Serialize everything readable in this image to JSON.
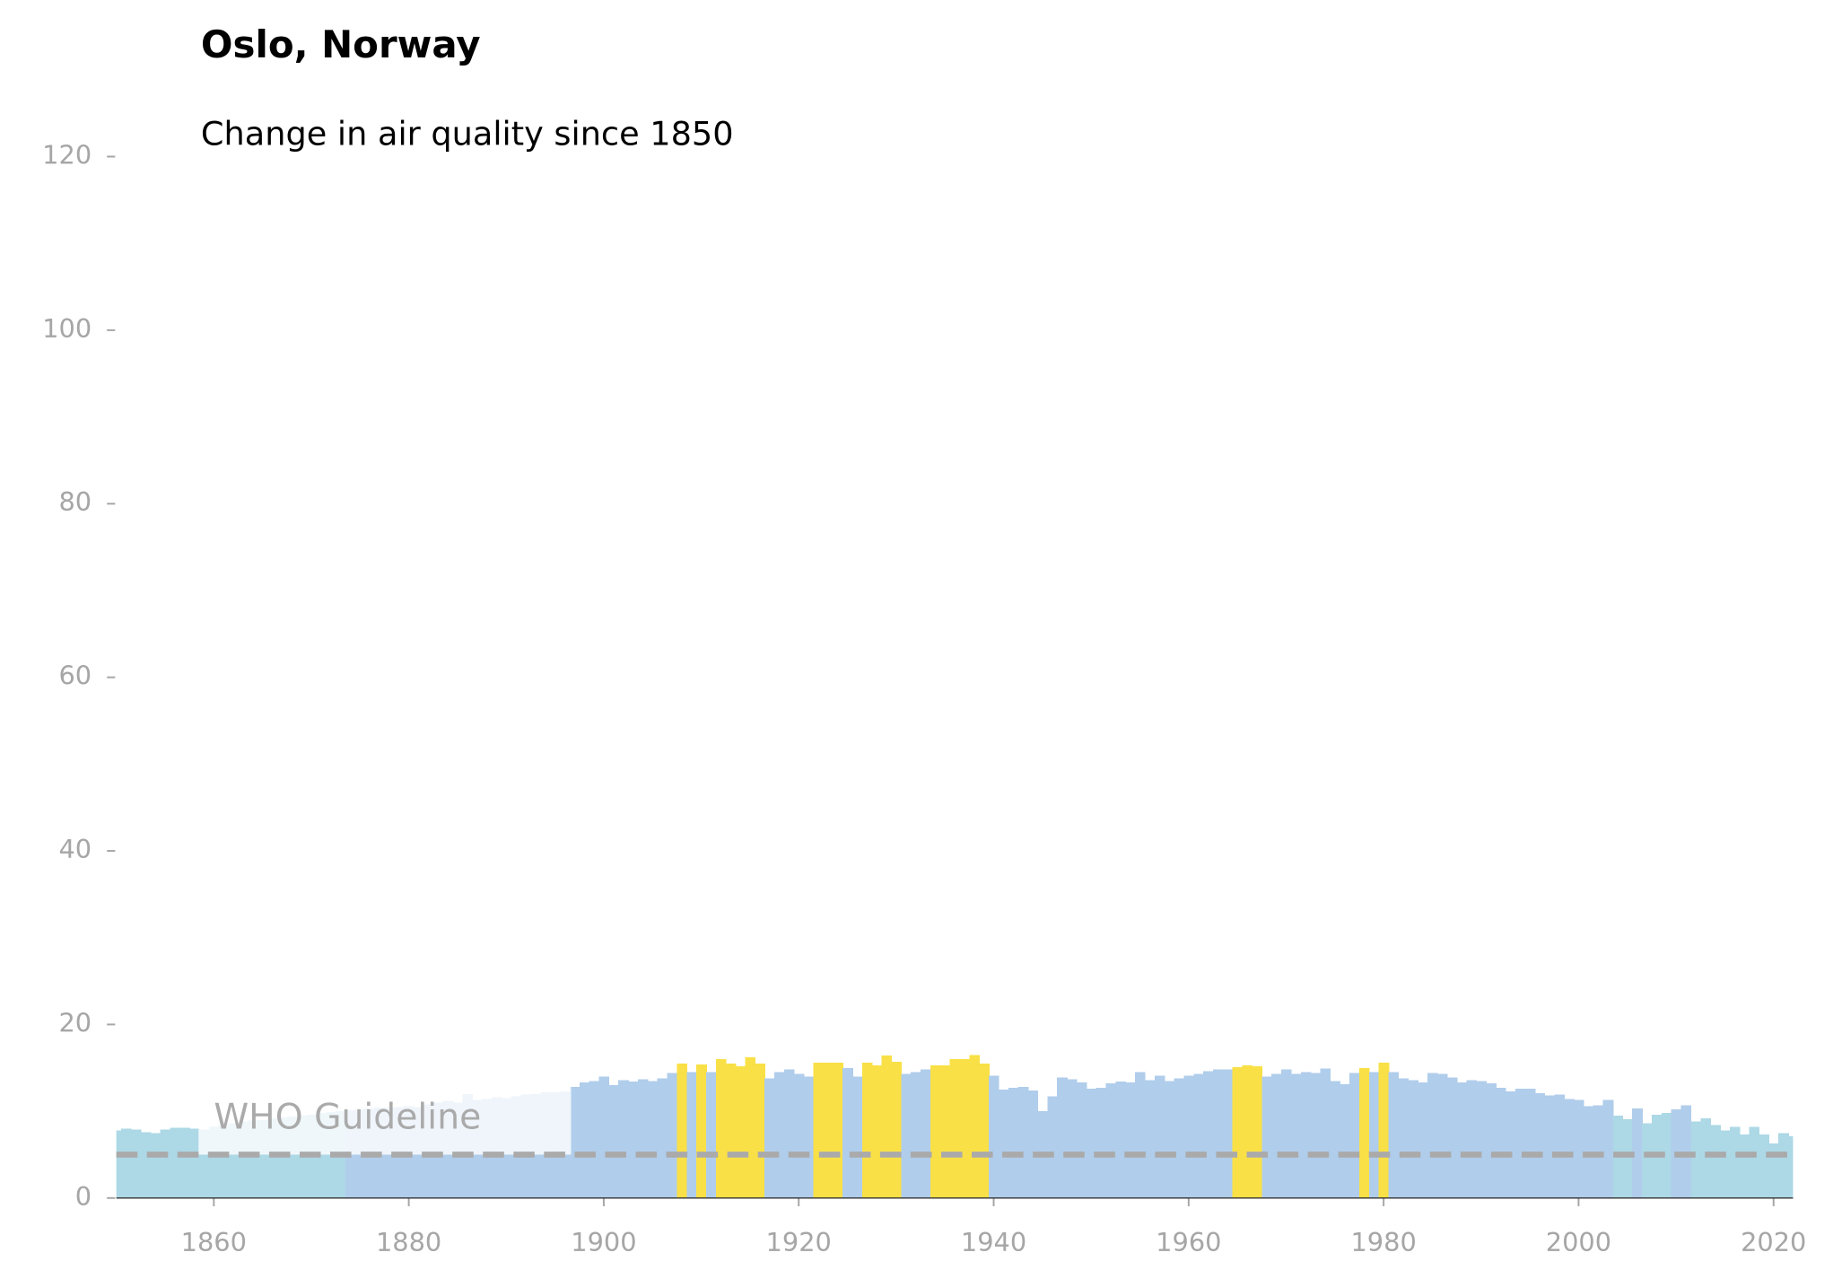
{
  "chart_data": {
    "type": "bar",
    "title": "Oslo, Norway",
    "subtitle": "Change in air quality since 1850",
    "x": [
      1850,
      1851,
      1852,
      1853,
      1854,
      1855,
      1856,
      1857,
      1858,
      1859,
      1860,
      1861,
      1862,
      1863,
      1864,
      1865,
      1866,
      1867,
      1868,
      1869,
      1870,
      1871,
      1872,
      1873,
      1874,
      1875,
      1876,
      1877,
      1878,
      1879,
      1880,
      1881,
      1882,
      1883,
      1884,
      1885,
      1886,
      1887,
      1888,
      1889,
      1890,
      1891,
      1892,
      1893,
      1894,
      1895,
      1896,
      1897,
      1898,
      1899,
      1900,
      1901,
      1902,
      1903,
      1904,
      1905,
      1906,
      1907,
      1908,
      1909,
      1910,
      1911,
      1912,
      1913,
      1914,
      1915,
      1916,
      1917,
      1918,
      1919,
      1920,
      1921,
      1922,
      1923,
      1924,
      1925,
      1926,
      1927,
      1928,
      1929,
      1930,
      1931,
      1932,
      1933,
      1934,
      1935,
      1936,
      1937,
      1938,
      1939,
      1940,
      1941,
      1942,
      1943,
      1944,
      1945,
      1946,
      1947,
      1948,
      1949,
      1950,
      1951,
      1952,
      1953,
      1954,
      1955,
      1956,
      1957,
      1958,
      1959,
      1960,
      1961,
      1962,
      1963,
      1964,
      1965,
      1966,
      1967,
      1968,
      1969,
      1970,
      1971,
      1972,
      1973,
      1974,
      1975,
      1976,
      1977,
      1978,
      1979,
      1980,
      1981,
      1982,
      1983,
      1984,
      1985,
      1986,
      1987,
      1988,
      1989,
      1990,
      1991,
      1992,
      1993,
      1994,
      1995,
      1996,
      1997,
      1998,
      1999,
      2000,
      2001,
      2002,
      2003,
      2004,
      2005,
      2006,
      2007,
      2008,
      2009,
      2010,
      2011,
      2012,
      2013,
      2014,
      2015,
      2016,
      2017,
      2018,
      2019,
      2020,
      2021,
      2022
    ],
    "series": [
      {
        "values": [
          7.8,
          8.0,
          7.9,
          7.6,
          7.5,
          7.9,
          8.1,
          8.1,
          8.0,
          7.9,
          8.2,
          8.4,
          8.6,
          8.8,
          8.9,
          9.0,
          9.2,
          9.3,
          9.4,
          9.5,
          9.6,
          9.8,
          9.9,
          10.0,
          10.1,
          10.2,
          10.3,
          10.4,
          10.4,
          10.5,
          10.6,
          10.5,
          10.8,
          11.0,
          11.2,
          11.0,
          12.0,
          11.3,
          11.4,
          11.6,
          11.5,
          11.7,
          11.9,
          12.0,
          12.2,
          12.2,
          12.3,
          12.8,
          13.3,
          13.5,
          14.0,
          13.0,
          13.6,
          13.4,
          13.7,
          13.5,
          13.8,
          14.4,
          15.5,
          14.5,
          15.4,
          14.5,
          16.0,
          15.5,
          15.2,
          16.2,
          15.5,
          13.8,
          14.5,
          14.8,
          14.3,
          14.0,
          15.6,
          15.6,
          15.6,
          15.0,
          14.0,
          15.6,
          15.3,
          16.4,
          15.7,
          14.3,
          14.5,
          14.8,
          15.3,
          15.3,
          16.0,
          16.0,
          16.5,
          15.5,
          14.1,
          12.5,
          12.7,
          12.8,
          12.4,
          10.0,
          11.7,
          13.9,
          13.7,
          13.3,
          12.6,
          12.7,
          13.2,
          13.4,
          13.3,
          14.5,
          13.6,
          14.1,
          13.5,
          13.8,
          14.1,
          14.3,
          14.6,
          14.8,
          14.8,
          15.1,
          15.3,
          15.2,
          14.0,
          14.3,
          14.8,
          14.3,
          14.5,
          14.4,
          14.9,
          13.5,
          13.1,
          14.4,
          15.0,
          14.5,
          15.6,
          14.5,
          13.8,
          13.6,
          13.3,
          14.4,
          14.3,
          13.9,
          13.3,
          13.6,
          13.5,
          13.2,
          12.7,
          12.3,
          12.6,
          12.6,
          12.1,
          11.8,
          11.9,
          11.4,
          11.3,
          10.6,
          10.7,
          11.3,
          9.5,
          9.1,
          10.3,
          8.6,
          9.6,
          9.8,
          10.2,
          10.7,
          8.8,
          9.2,
          8.4,
          7.8,
          8.2,
          7.3,
          8.2,
          7.3,
          6.3,
          7.5,
          7.1
        ],
        "colors": [
          "#add8e6",
          "#add8e6",
          "#add8e6",
          "#add8e6",
          "#add8e6",
          "#add8e6",
          "#add8e6",
          "#add8e6",
          "#add8e6",
          "#add8e6",
          "#add8e6",
          "#add8e6",
          "#add8e6",
          "#add8e6",
          "#add8e6",
          "#add8e6",
          "#add8e6",
          "#add8e6",
          "#add8e6",
          "#add8e6",
          "#add8e6",
          "#add8e6",
          "#add8e6",
          "#add8e6",
          "#b0cdeb",
          "#b0cdeb",
          "#b0cdeb",
          "#b0cdeb",
          "#b0cdeb",
          "#b0cdeb",
          "#b0cdeb",
          "#b0cdeb",
          "#b0cdeb",
          "#b0cdeb",
          "#b0cdeb",
          "#b0cdeb",
          "#b0cdeb",
          "#b0cdeb",
          "#b0cdeb",
          "#b0cdeb",
          "#b0cdeb",
          "#b0cdeb",
          "#b0cdeb",
          "#b0cdeb",
          "#b0cdeb",
          "#b0cdeb",
          "#b0cdeb",
          "#b0cdeb",
          "#b0cdeb",
          "#b0cdeb",
          "#b0cdeb",
          "#b0cdeb",
          "#b0cdeb",
          "#b0cdeb",
          "#b0cdeb",
          "#b0cdeb",
          "#b0cdeb",
          "#b0cdeb",
          "#f9e046",
          "#b0cdeb",
          "#f9e046",
          "#b0cdeb",
          "#f9e046",
          "#f9e046",
          "#f9e046",
          "#f9e046",
          "#f9e046",
          "#b0cdeb",
          "#b0cdeb",
          "#b0cdeb",
          "#b0cdeb",
          "#b0cdeb",
          "#f9e046",
          "#f9e046",
          "#f9e046",
          "#b0cdeb",
          "#b0cdeb",
          "#f9e046",
          "#f9e046",
          "#f9e046",
          "#f9e046",
          "#b0cdeb",
          "#b0cdeb",
          "#b0cdeb",
          "#f9e046",
          "#f9e046",
          "#f9e046",
          "#f9e046",
          "#f9e046",
          "#f9e046",
          "#b0cdeb",
          "#b0cdeb",
          "#b0cdeb",
          "#b0cdeb",
          "#b0cdeb",
          "#b0cdeb",
          "#b0cdeb",
          "#b0cdeb",
          "#b0cdeb",
          "#b0cdeb",
          "#b0cdeb",
          "#b0cdeb",
          "#b0cdeb",
          "#b0cdeb",
          "#b0cdeb",
          "#b0cdeb",
          "#b0cdeb",
          "#b0cdeb",
          "#b0cdeb",
          "#b0cdeb",
          "#b0cdeb",
          "#b0cdeb",
          "#b0cdeb",
          "#b0cdeb",
          "#b0cdeb",
          "#f9e046",
          "#f9e046",
          "#f9e046",
          "#b0cdeb",
          "#b0cdeb",
          "#b0cdeb",
          "#b0cdeb",
          "#b0cdeb",
          "#b0cdeb",
          "#b0cdeb",
          "#b0cdeb",
          "#b0cdeb",
          "#b0cdeb",
          "#f9e046",
          "#b0cdeb",
          "#f9e046",
          "#b0cdeb",
          "#b0cdeb",
          "#b0cdeb",
          "#b0cdeb",
          "#b0cdeb",
          "#b0cdeb",
          "#b0cdeb",
          "#b0cdeb",
          "#b0cdeb",
          "#b0cdeb",
          "#b0cdeb",
          "#b0cdeb",
          "#b0cdeb",
          "#b0cdeb",
          "#b0cdeb",
          "#b0cdeb",
          "#b0cdeb",
          "#b0cdeb",
          "#b0cdeb",
          "#b0cdeb",
          "#b0cdeb",
          "#b0cdeb",
          "#b0cdeb",
          "#add8e6",
          "#add8e6",
          "#b0cdeb",
          "#add8e6",
          "#add8e6",
          "#add8e6",
          "#b0cdeb",
          "#b0cdeb",
          "#add8e6",
          "#add8e6",
          "#add8e6",
          "#add8e6",
          "#add8e6",
          "#add8e6",
          "#add8e6",
          "#add8e6",
          "#add8e6",
          "#add8e6",
          "#add8e6"
        ]
      }
    ],
    "hline": {
      "value": 5,
      "label": "WHO Guideline",
      "color": "#aaaaaa"
    },
    "xlim": [
      1850,
      2022
    ],
    "xticks": [
      1860,
      1880,
      1900,
      1920,
      1940,
      1960,
      1980,
      2000,
      2020
    ],
    "ylim": [
      0,
      120
    ],
    "yticks": [
      0,
      20,
      40,
      60,
      80,
      100,
      120
    ]
  }
}
